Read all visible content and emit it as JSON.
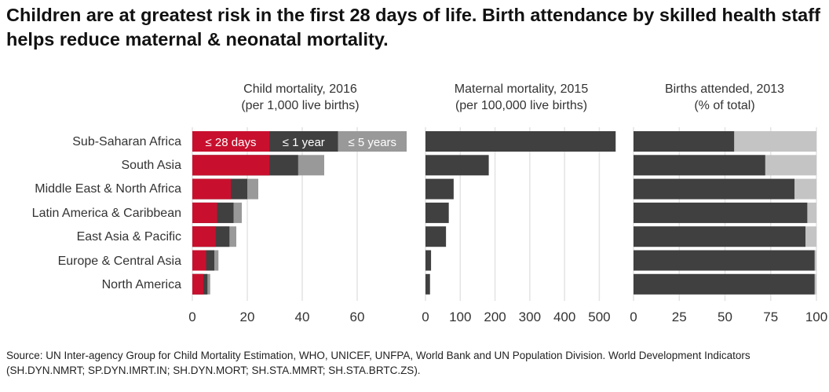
{
  "title": "Children are at greatest risk in the first 28 days of life. Birth attendance by skilled health staff helps reduce maternal & neonatal mortality.",
  "source": "Source: UN Inter-agency Group for Child Mortality Estimation, WHO, UNICEF, UNFPA, World Bank and UN Population Division. World Development Indicators (SH.DYN.NMRT; SP.DYN.IMRT.IN; SH.DYN.MORT; SH.STA.MMRT; SH.STA.BRTC.ZS).",
  "regions": [
    "Sub-Saharan Africa",
    "South Asia",
    "Middle East & North Africa",
    "Latin America & Caribbean",
    "East Asia & Pacific",
    "Europe & Central Asia",
    "North America"
  ],
  "colors": {
    "neonatal": "#c8102e",
    "dark": "#404040",
    "light": "#999999",
    "unattended": "#c4c4c4",
    "grid": "#e3e3e3",
    "text": "#333333"
  },
  "chart_data": [
    {
      "type": "bar",
      "stacked": "overlay",
      "title": "Child mortality, 2016",
      "subtitle": "(per 1,000 live births)",
      "categories": [
        "Sub-Saharan Africa",
        "South Asia",
        "Middle East & North Africa",
        "Latin America & Caribbean",
        "East Asia & Pacific",
        "Europe & Central Asia",
        "North America"
      ],
      "series": [
        {
          "name": "≤ 28 days",
          "values": [
            28,
            28,
            14,
            9,
            8.5,
            5,
            4
          ]
        },
        {
          "name": "≤ 1 year",
          "values": [
            53,
            38.5,
            20,
            15,
            13.5,
            8,
            5.5
          ]
        },
        {
          "name": "≤ 5 years",
          "values": [
            78,
            48,
            24,
            18,
            16,
            9.5,
            6.5
          ]
        }
      ],
      "xlim": [
        0,
        80
      ],
      "xticks": [
        "0",
        "20",
        "40",
        "60"
      ],
      "grid": true
    },
    {
      "type": "bar",
      "title": "Maternal mortality, 2015",
      "subtitle": "(per 100,000 live births)",
      "categories": [
        "Sub-Saharan Africa",
        "South Asia",
        "Middle East & North Africa",
        "Latin America & Caribbean",
        "East Asia & Pacific",
        "Europe & Central Asia",
        "North America"
      ],
      "values": [
        547,
        182,
        81,
        67,
        59,
        16,
        13
      ],
      "xlim": [
        0,
        560
      ],
      "xticks": [
        "0",
        "100",
        "200",
        "300",
        "400",
        "500"
      ],
      "grid": true
    },
    {
      "type": "bar",
      "stacked": true,
      "title": "Births attended, 2013",
      "subtitle": "(% of total)",
      "categories": [
        "Sub-Saharan Africa",
        "South Asia",
        "Middle East & North Africa",
        "Latin America & Caribbean",
        "East Asia & Pacific",
        "Europe & Central Asia",
        "North America"
      ],
      "values": [
        55,
        72,
        88,
        95,
        94,
        99,
        99
      ],
      "xlim": [
        0,
        100
      ],
      "xticks": [
        "0",
        "25",
        "50",
        "75",
        "100"
      ],
      "grid": true
    }
  ]
}
